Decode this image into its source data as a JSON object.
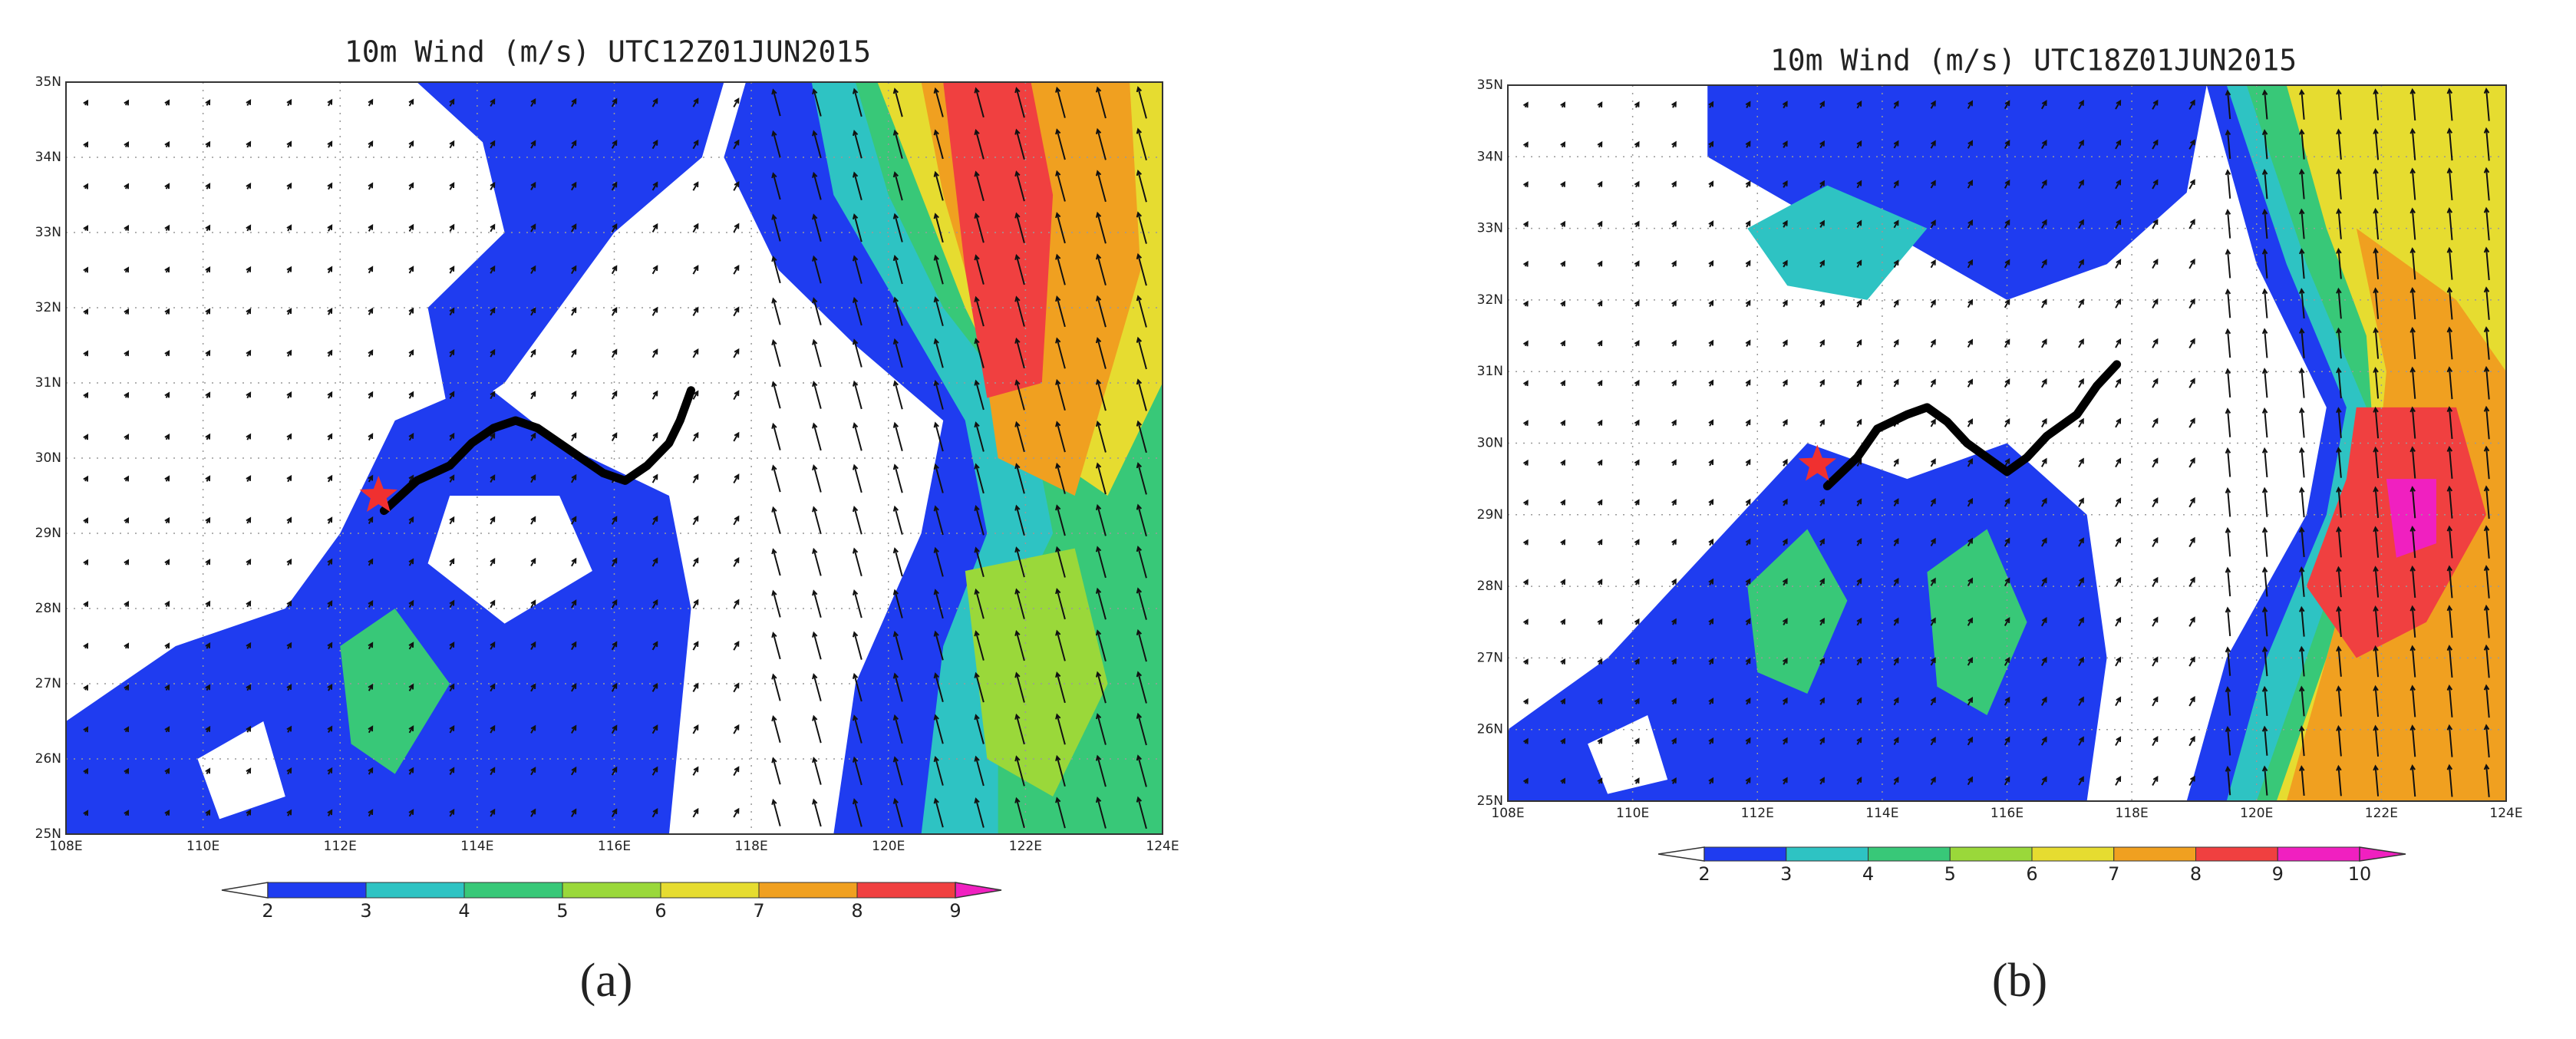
{
  "panels": [
    {
      "title": "10m Wind (m/s) UTC12Z01JUN2015",
      "label": "(a)",
      "lat_labels": [
        "25N",
        "26N",
        "27N",
        "28N",
        "29N",
        "30N",
        "31N",
        "32N",
        "33N",
        "34N",
        "35N"
      ],
      "lon_labels": [
        "108E",
        "110E",
        "112E",
        "114E",
        "116E",
        "118E",
        "120E",
        "122E",
        "124E"
      ],
      "colorbar_ticks": [
        2,
        3,
        4,
        5,
        6,
        7,
        8,
        9
      ]
    },
    {
      "title": "10m Wind (m/s) UTC18Z01JUN2015",
      "label": "(b)",
      "lat_labels": [
        "25N",
        "26N",
        "27N",
        "28N",
        "29N",
        "30N",
        "31N",
        "32N",
        "33N",
        "34N",
        "35N"
      ],
      "lon_labels": [
        "108E",
        "110E",
        "112E",
        "114E",
        "116E",
        "118E",
        "120E",
        "122E",
        "124E"
      ],
      "colorbar_ticks": [
        2,
        3,
        4,
        5,
        6,
        7,
        8,
        9,
        10
      ]
    }
  ],
  "colorbar_colors": [
    "#ffffff",
    "#1f3cf0",
    "#2ec3c3",
    "#38c878",
    "#9ad83a",
    "#e6dc30",
    "#f0a020",
    "#f04040",
    "#f020c0",
    "#f020c0"
  ]
}
